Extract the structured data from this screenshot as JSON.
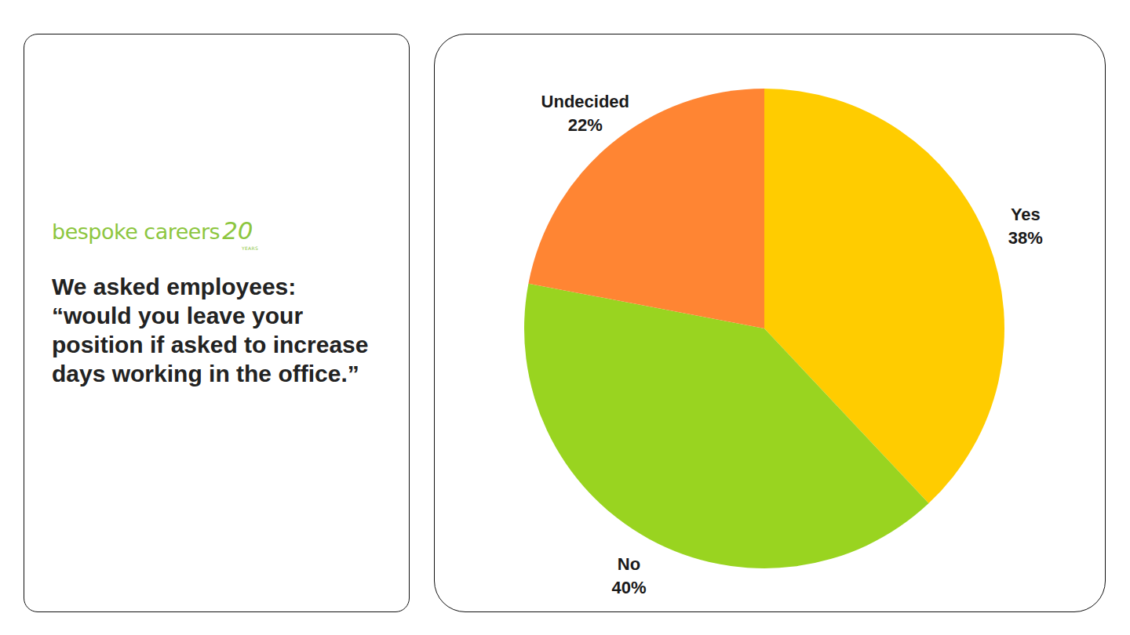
{
  "logo": {
    "text": "bespoke careers",
    "number": "20",
    "tag": "YEARS"
  },
  "chart_data": {
    "type": "pie",
    "title": "We asked employees:\n“would you leave your\nposition if asked to increase\ndays working in the office.”",
    "categories": [
      "Yes",
      "No",
      "Undecided"
    ],
    "values": [
      38,
      40,
      22
    ],
    "value_labels": [
      "38%",
      "40%",
      "22%"
    ],
    "colors": [
      "#ffcc00",
      "#99d420",
      "#ff8533"
    ],
    "data_labels": true
  }
}
